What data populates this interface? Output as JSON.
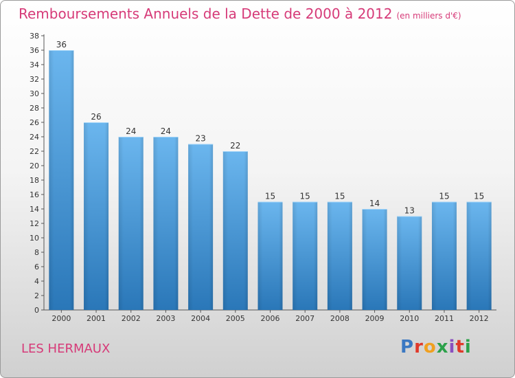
{
  "header": {
    "title": "Remboursements Annuels de la Dette de 2000 à 2012",
    "subtitle": "(en milliers d'€)"
  },
  "footer": {
    "location": "LES HERMAUX",
    "logo_text": "Proxiti",
    "logo_letters": [
      "P",
      "r",
      "o",
      "x",
      "i",
      "t",
      "i"
    ]
  },
  "colors": {
    "title": "#d63a78",
    "bar_light": "#6bb6ee",
    "bar_dark": "#2a77b8",
    "axis": "#555555",
    "grid": "#cccccc"
  },
  "chart_data": {
    "type": "bar",
    "title": "Remboursements Annuels de la Dette de 2000 à 2012",
    "subtitle": "(en milliers d'€)",
    "xlabel": "",
    "ylabel": "",
    "categories": [
      "2000",
      "2001",
      "2002",
      "2003",
      "2004",
      "2005",
      "2006",
      "2007",
      "2008",
      "2009",
      "2010",
      "2011",
      "2012"
    ],
    "values": [
      36,
      26,
      24,
      24,
      23,
      22,
      15,
      15,
      15,
      14,
      13,
      15,
      15
    ],
    "ylim": [
      0,
      38
    ],
    "yticks": [
      0,
      2,
      4,
      6,
      8,
      10,
      12,
      14,
      16,
      18,
      20,
      22,
      24,
      26,
      28,
      30,
      32,
      34,
      36,
      38
    ],
    "grid": false,
    "legend": "none"
  }
}
